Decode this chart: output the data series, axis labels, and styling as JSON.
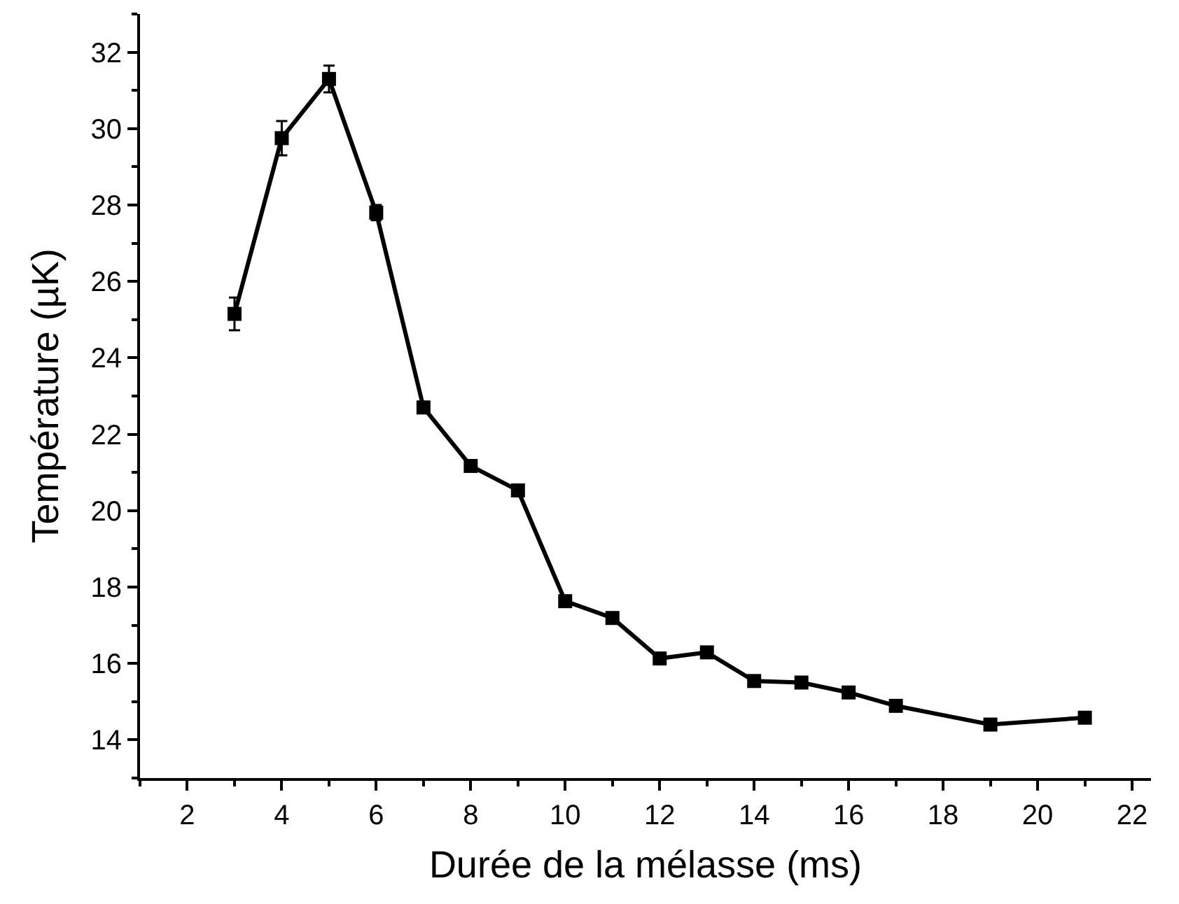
{
  "chart_data": {
    "type": "line",
    "xlabel": "Durée de la mélasse (ms)",
    "ylabel": "Température (µK)",
    "x": [
      3,
      4,
      5,
      6,
      7,
      8,
      9,
      10,
      11,
      12,
      13,
      14,
      15,
      16,
      17,
      19,
      21
    ],
    "series": [
      {
        "color": "#000000",
        "values": [
          25.15,
          29.75,
          31.3,
          27.8,
          22.7,
          21.17,
          20.53,
          17.63,
          17.19,
          16.13,
          16.29,
          15.54,
          15.5,
          15.24,
          14.89,
          14.4,
          14.58
        ],
        "errors": [
          0.43,
          0.45,
          0.35,
          0.2,
          0.15,
          null,
          null,
          null,
          null,
          null,
          null,
          null,
          null,
          null,
          null,
          null,
          null
        ]
      }
    ],
    "xlim": [
      1,
      22.4
    ],
    "ylim": [
      13,
      33
    ],
    "xticks": [
      2,
      4,
      6,
      8,
      10,
      12,
      14,
      16,
      18,
      20,
      22
    ],
    "yticks": [
      14,
      16,
      18,
      20,
      22,
      24,
      26,
      28,
      30,
      32
    ],
    "marker": "square",
    "line_style": "solid"
  }
}
